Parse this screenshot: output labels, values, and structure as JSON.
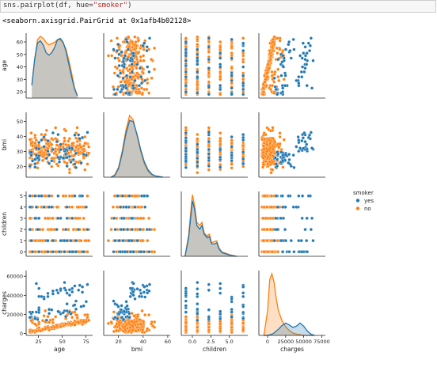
{
  "cell": {
    "code_prefix": "sns.pairplot(df, hue=",
    "code_string": "\"smoker\"",
    "code_suffix": ")",
    "output_repr": "<seaborn.axisgrid.PairGrid at 0x1afb4b02128>"
  },
  "colors": {
    "yes": "#1f77b4",
    "no": "#ff7f0e"
  },
  "chart_data": {
    "type": "scatter",
    "subtype": "pairplot",
    "variables": [
      "age",
      "bmi",
      "children",
      "charges"
    ],
    "hue": "smoker",
    "legend": {
      "title": "smoker",
      "entries": [
        "yes",
        "no"
      ],
      "placement": "right"
    },
    "axes": {
      "age": {
        "range": [
          15,
          67
        ],
        "ticks": [
          20,
          30,
          40,
          50,
          60
        ],
        "xticks": [
          25,
          50,
          75
        ],
        "xrange": [
          12,
          82
        ]
      },
      "bmi": {
        "range": [
          13,
          56
        ],
        "ticks": [
          20,
          30,
          40,
          50
        ],
        "xticks": [
          20,
          40,
          60
        ],
        "xrange": [
          8,
          62
        ]
      },
      "children": {
        "range": [
          -0.4,
          5.4
        ],
        "ticks": [
          0,
          1,
          2,
          3,
          4,
          5
        ],
        "xticks": [
          "0.0",
          "2.5",
          "5.0"
        ],
        "xtick_values": [
          0,
          2.5,
          5.0
        ],
        "xrange": [
          -1.5,
          7.5
        ]
      },
      "charges": {
        "range": [
          -2000,
          66000
        ],
        "ticks": [
          0,
          20000,
          40000,
          60000
        ],
        "xticks": [
          0,
          25000,
          50000,
          75000
        ],
        "xrange": [
          -12000,
          80000
        ]
      }
    },
    "diagonal_kde": {
      "age": {
        "x": [
          18,
          21,
          24,
          27,
          30,
          33,
          36,
          39,
          42,
          45,
          48,
          51,
          54,
          57,
          60,
          63,
          66
        ],
        "yes": [
          0.2,
          0.6,
          0.85,
          0.88,
          0.82,
          0.7,
          0.66,
          0.7,
          0.78,
          0.9,
          0.92,
          0.86,
          0.72,
          0.52,
          0.32,
          0.14,
          0.03
        ],
        "no": [
          0.2,
          0.6,
          0.9,
          0.95,
          0.92,
          0.86,
          0.82,
          0.84,
          0.86,
          0.9,
          0.9,
          0.85,
          0.75,
          0.58,
          0.38,
          0.16,
          0.04
        ]
      },
      "bmi": {
        "x": [
          14,
          17,
          20,
          23,
          26,
          29,
          32,
          35,
          38,
          41,
          44,
          47,
          50,
          53,
          56
        ],
        "yes": [
          0.0,
          0.03,
          0.14,
          0.38,
          0.7,
          0.92,
          0.9,
          0.7,
          0.45,
          0.25,
          0.12,
          0.05,
          0.02,
          0.01,
          0.0
        ],
        "no": [
          0.0,
          0.04,
          0.16,
          0.42,
          0.76,
          1.0,
          0.93,
          0.68,
          0.42,
          0.22,
          0.1,
          0.04,
          0.02,
          0.01,
          0.0
        ]
      },
      "children": {
        "x": [
          -1.0,
          -0.5,
          0.0,
          0.3,
          0.6,
          1.0,
          1.3,
          1.6,
          2.0,
          2.3,
          2.6,
          3.0,
          3.3,
          3.6,
          4.0,
          4.5,
          5.0,
          5.5,
          6.0
        ],
        "yes": [
          0.0,
          0.3,
          0.9,
          0.76,
          0.5,
          0.44,
          0.5,
          0.36,
          0.3,
          0.32,
          0.2,
          0.2,
          0.22,
          0.12,
          0.06,
          0.04,
          0.02,
          0.01,
          0.0
        ],
        "no": [
          0.0,
          0.35,
          1.0,
          0.82,
          0.55,
          0.5,
          0.55,
          0.38,
          0.33,
          0.36,
          0.22,
          0.24,
          0.25,
          0.14,
          0.07,
          0.05,
          0.03,
          0.01,
          0.0
        ]
      },
      "charges": {
        "x": [
          -5000,
          0,
          3000,
          6000,
          9000,
          12000,
          15000,
          20000,
          25000,
          30000,
          35000,
          40000,
          45000,
          50000,
          55000,
          60000,
          65000
        ],
        "yes": [
          0.0,
          0.0,
          0.01,
          0.02,
          0.04,
          0.07,
          0.1,
          0.16,
          0.2,
          0.17,
          0.13,
          0.15,
          0.2,
          0.15,
          0.07,
          0.02,
          0.0
        ],
        "no": [
          0.0,
          0.4,
          0.9,
          1.0,
          0.86,
          0.6,
          0.4,
          0.24,
          0.14,
          0.08,
          0.04,
          0.02,
          0.01,
          0.0,
          0.0,
          0.0,
          0.0
        ]
      }
    }
  }
}
